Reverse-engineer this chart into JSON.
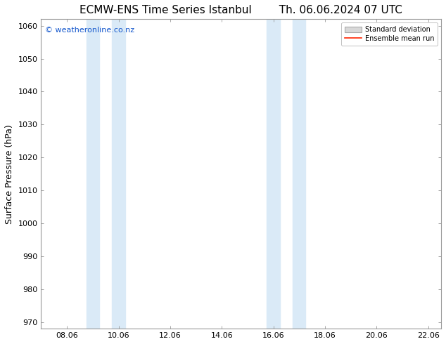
{
  "title_left": "ECMW-ENS Time Series Istanbul",
  "title_right": "Th. 06.06.2024 07 UTC",
  "ylabel": "Surface Pressure (hPa)",
  "xlim": [
    7.0,
    22.5
  ],
  "ylim": [
    968,
    1062
  ],
  "yticks": [
    970,
    980,
    990,
    1000,
    1010,
    1020,
    1030,
    1040,
    1050,
    1060
  ],
  "xtick_labels": [
    "08.06",
    "10.06",
    "12.06",
    "14.06",
    "16.06",
    "18.06",
    "20.06",
    "22.06"
  ],
  "xtick_positions": [
    8,
    10,
    12,
    14,
    16,
    18,
    20,
    22
  ],
  "shaded_bands": [
    {
      "x_start": 8.75,
      "x_end": 9.25
    },
    {
      "x_start": 9.75,
      "x_end": 10.25
    },
    {
      "x_start": 15.75,
      "x_end": 16.25
    },
    {
      "x_start": 16.75,
      "x_end": 17.25
    }
  ],
  "shaded_color": "#daeaf7",
  "background_color": "#ffffff",
  "watermark_text": "© weatheronline.co.nz",
  "watermark_color": "#1155cc",
  "legend_std_color": "#d8d8d8",
  "legend_mean_color": "#ff2200",
  "title_fontsize": 11,
  "axis_label_fontsize": 9,
  "tick_fontsize": 8,
  "spine_color": "#999999"
}
